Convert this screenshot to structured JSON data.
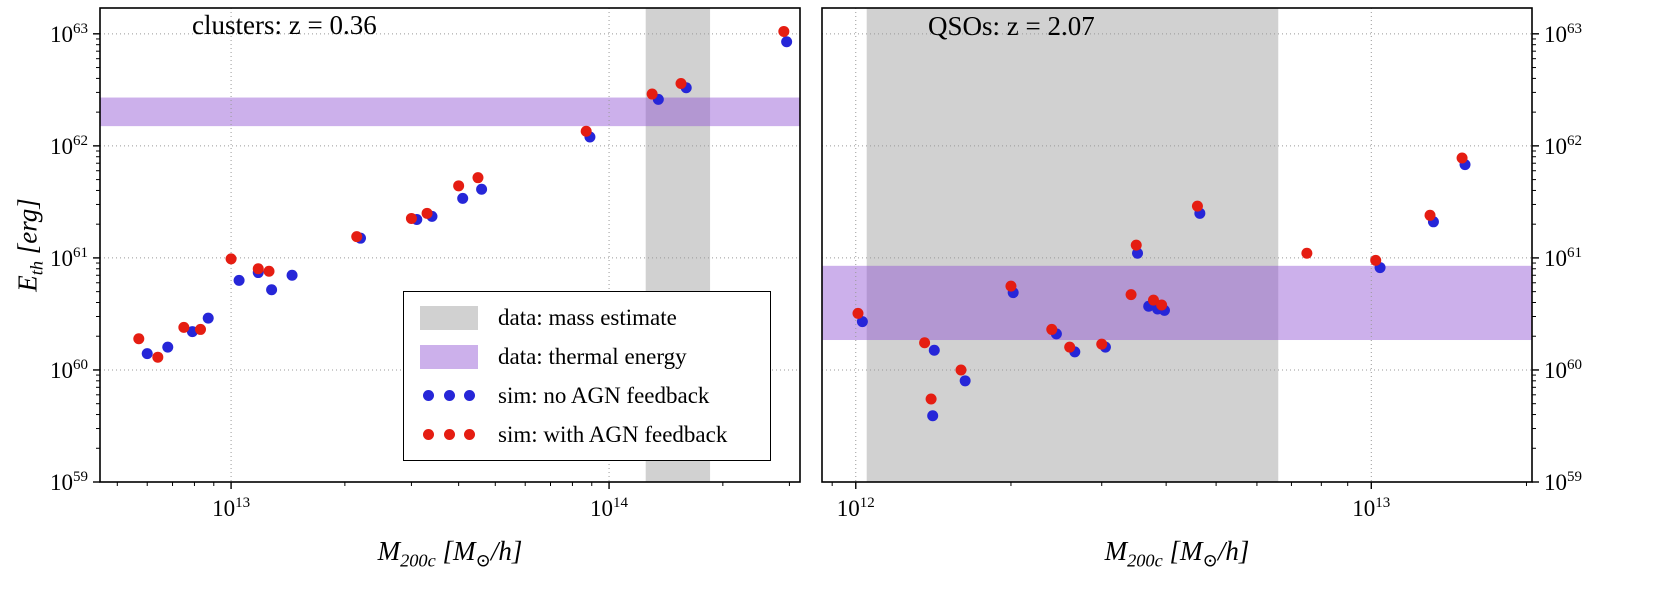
{
  "colors": {
    "red": "#e51d12",
    "blue": "#2626d8",
    "gray_band": "#c9c9c9",
    "purple_band": "#8d4fd3",
    "grid": "#999999",
    "axis": "#000000"
  },
  "chart_data": {
    "type": "scatter",
    "xlabel": "M_{200c} [M_{⊙}/h]",
    "ylabel": "E_{th} [erg]",
    "grid": "dotted major",
    "legend_position": "lower center of left panel",
    "legend": [
      {
        "marker": "patch",
        "color_key": "gray_band",
        "label": "data: mass estimate"
      },
      {
        "marker": "patch",
        "color_key": "purple_band",
        "label": "data: thermal energy"
      },
      {
        "marker": "dots",
        "color_key": "blue",
        "label": "sim: no AGN feedback"
      },
      {
        "marker": "dots",
        "color_key": "red",
        "label": "sim: with AGN feedback"
      }
    ],
    "panels": [
      {
        "id": "clusters",
        "title": "clusters: z = 0.36",
        "xlim": [
          4500000000000.0,
          320000000000000.0
        ],
        "ylim": [
          1e+59,
          1.7e+63
        ],
        "xticks_exp": [
          13,
          14
        ],
        "yticks_exp": [
          59,
          60,
          61,
          62,
          63
        ],
        "xtick_labels": [
          "10^{13}",
          "10^{14}"
        ],
        "ytick_labels": [
          "10^{59}",
          "10^{60}",
          "10^{61}",
          "10^{62}",
          "10^{63}"
        ],
        "ylabel_side": "left",
        "bands": {
          "mass_estimate_x": [
            125000000000000.0,
            185000000000000.0
          ],
          "thermal_energy_y": [
            1.5e+62,
            2.7e+62
          ]
        },
        "series": [
          {
            "name": "sim: no AGN feedback",
            "color_key": "blue",
            "points": [
              [
                6000000000000.0,
                1.4e+60
              ],
              [
                6800000000000.0,
                1.6e+60
              ],
              [
                7900000000000.0,
                2.2e+60
              ],
              [
                8700000000000.0,
                2.9e+60
              ],
              [
                10500000000000.0,
                6.3e+60
              ],
              [
                11800000000000.0,
                7.4e+60
              ],
              [
                12800000000000.0,
                5.2e+60
              ],
              [
                14500000000000.0,
                7e+60
              ],
              [
                22000000000000.0,
                1.5e+61
              ],
              [
                31000000000000.0,
                2.2e+61
              ],
              [
                34000000000000.0,
                2.35e+61
              ],
              [
                41000000000000.0,
                3.4e+61
              ],
              [
                46000000000000.0,
                4.1e+61
              ],
              [
                89000000000000.0,
                1.2e+62
              ],
              [
                135000000000000.0,
                2.6e+62
              ],
              [
                160000000000000.0,
                3.3e+62
              ],
              [
                295000000000000.0,
                8.5e+62
              ]
            ]
          },
          {
            "name": "sim: with AGN feedback",
            "color_key": "red",
            "points": [
              [
                5700000000000.0,
                1.9e+60
              ],
              [
                6400000000000.0,
                1.3e+60
              ],
              [
                7500000000000.0,
                2.4e+60
              ],
              [
                8300000000000.0,
                2.3e+60
              ],
              [
                10000000000000.0,
                9.8e+60
              ],
              [
                11800000000000.0,
                8e+60
              ],
              [
                12600000000000.0,
                7.6e+60
              ],
              [
                21500000000000.0,
                1.55e+61
              ],
              [
                30000000000000.0,
                2.25e+61
              ],
              [
                33000000000000.0,
                2.5e+61
              ],
              [
                40000000000000.0,
                4.4e+61
              ],
              [
                45000000000000.0,
                5.2e+61
              ],
              [
                87000000000000.0,
                1.35e+62
              ],
              [
                130000000000000.0,
                2.9e+62
              ],
              [
                155000000000000.0,
                3.6e+62
              ],
              [
                290000000000000.0,
                1.05e+63
              ]
            ]
          }
        ]
      },
      {
        "id": "qsos",
        "title": "QSOs: z = 2.07",
        "xlim": [
          860000000000.0,
          20500000000000.0
        ],
        "ylim": [
          1e+59,
          1.7e+63
        ],
        "xticks_exp": [
          12,
          13
        ],
        "yticks_exp": [
          59,
          60,
          61,
          62,
          63
        ],
        "xtick_labels": [
          "10^{12}",
          "10^{13}"
        ],
        "ytick_labels": [
          "10^{59}",
          "10^{60}",
          "10^{61}",
          "10^{62}",
          "10^{63}"
        ],
        "ylabel_side": "right",
        "bands": {
          "mass_estimate_x": [
            1050000000000.0,
            6600000000000.0
          ],
          "thermal_energy_y": [
            1.85e+60,
            8.5e+60
          ]
        },
        "series": [
          {
            "name": "sim: no AGN feedback",
            "color_key": "blue",
            "points": [
              [
                1030000000000.0,
                2.7e+60
              ],
              [
                1420000000000.0,
                1.5e+60
              ],
              [
                1410000000000.0,
                3.9e+59
              ],
              [
                1630000000000.0,
                8e+59
              ],
              [
                2020000000000.0,
                4.9e+60
              ],
              [
                2450000000000.0,
                2.1e+60
              ],
              [
                2660000000000.0,
                1.45e+60
              ],
              [
                3050000000000.0,
                1.6e+60
              ],
              [
                3520000000000.0,
                1.1e+61
              ],
              [
                3700000000000.0,
                3.7e+60
              ],
              [
                3850000000000.0,
                3.5e+60
              ],
              [
                3970000000000.0,
                3.4e+60
              ],
              [
                4650000000000.0,
                2.5e+61
              ],
              [
                10400000000000.0,
                8.2e+60
              ],
              [
                13200000000000.0,
                2.1e+61
              ],
              [
                15200000000000.0,
                6.8e+61
              ]
            ]
          },
          {
            "name": "sim: with AGN feedback",
            "color_key": "red",
            "points": [
              [
                1010000000000.0,
                3.2e+60
              ],
              [
                1360000000000.0,
                1.75e+60
              ],
              [
                1400000000000.0,
                5.5e+59
              ],
              [
                1600000000000.0,
                1e+60
              ],
              [
                2000000000000.0,
                5.6e+60
              ],
              [
                2400000000000.0,
                2.3e+60
              ],
              [
                2600000000000.0,
                1.6e+60
              ],
              [
                3000000000000.0,
                1.7e+60
              ],
              [
                3420000000000.0,
                4.7e+60
              ],
              [
                3500000000000.0,
                1.3e+61
              ],
              [
                3780000000000.0,
                4.2e+60
              ],
              [
                3920000000000.0,
                3.8e+60
              ],
              [
                4600000000000.0,
                2.9e+61
              ],
              [
                7500000000000.0,
                1.1e+61
              ],
              [
                10200000000000.0,
                9.5e+60
              ],
              [
                13000000000000.0,
                2.4e+61
              ],
              [
                15000000000000.0,
                7.8e+61
              ]
            ]
          }
        ]
      }
    ]
  }
}
